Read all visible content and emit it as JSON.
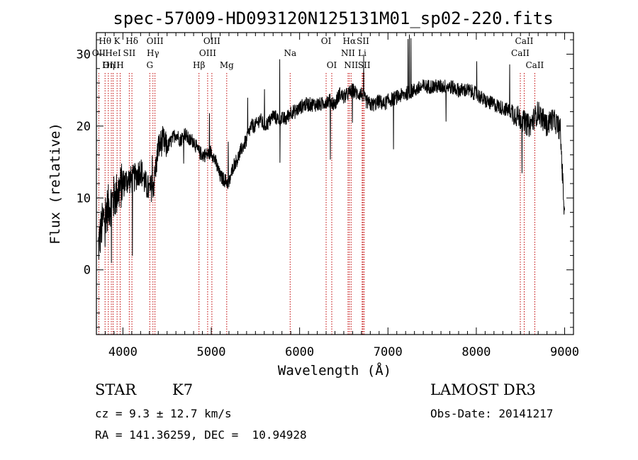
{
  "chart_data": {
    "type": "line",
    "title": "spec-57009-HD093120N125131M01_sp02-220.fits",
    "xlabel": "Wavelength (Å)",
    "ylabel": "Flux (relative)",
    "xlim": [
      3700,
      9100
    ],
    "ylim": [
      -9,
      33
    ],
    "x_ticks": [
      4000,
      5000,
      6000,
      7000,
      8000,
      9000
    ],
    "x_tick_labels": [
      "4000",
      "5000",
      "6000",
      "7000",
      "8000",
      "9000"
    ],
    "y_ticks": [
      0,
      10,
      20,
      30
    ],
    "y_tick_labels": [
      "0",
      "10",
      "20",
      "30"
    ],
    "grid": false,
    "series": [
      {
        "name": "flux",
        "x": [
          3720,
          3760,
          3800,
          3850,
          3900,
          3950,
          4000,
          4050,
          4100,
          4150,
          4200,
          4250,
          4300,
          4350,
          4400,
          4450,
          4500,
          4550,
          4600,
          4650,
          4700,
          4750,
          4800,
          4850,
          4900,
          4950,
          5000,
          5050,
          5100,
          5150,
          5200,
          5250,
          5300,
          5350,
          5400,
          5450,
          5500,
          5550,
          5600,
          5650,
          5700,
          5750,
          5800,
          5850,
          5900,
          5950,
          6000,
          6050,
          6100,
          6150,
          6200,
          6250,
          6300,
          6350,
          6400,
          6450,
          6500,
          6550,
          6600,
          6650,
          6700,
          6750,
          6800,
          6850,
          6900,
          6950,
          7000,
          7100,
          7200,
          7300,
          7400,
          7500,
          7600,
          7700,
          7800,
          7900,
          8000,
          8100,
          8200,
          8300,
          8400,
          8450,
          8500,
          8550,
          8600,
          8650,
          8700,
          8750,
          8800,
          8850,
          8900,
          8950,
          9000
        ],
        "y": [
          3,
          6,
          8,
          9,
          10,
          11,
          12,
          12.5,
          12.5,
          13,
          14,
          12,
          11,
          12,
          17,
          18,
          17,
          18,
          19,
          18,
          19,
          18,
          18,
          16.5,
          16,
          16,
          16.5,
          15,
          13,
          12.5,
          12,
          14.5,
          15.5,
          17,
          18,
          20,
          20,
          21,
          20,
          20.5,
          21.5,
          21,
          21,
          21,
          22,
          22,
          22.5,
          23,
          23,
          23,
          23,
          23,
          23.5,
          23.5,
          23,
          24.5,
          24,
          24.5,
          25,
          24.5,
          24.5,
          23.5,
          23,
          23,
          23.5,
          23,
          23.5,
          24,
          24.5,
          25,
          25.5,
          25.5,
          25.5,
          25.5,
          25,
          25,
          24.5,
          23.5,
          23,
          22.5,
          22,
          21.5,
          21,
          20.5,
          20,
          21,
          22,
          21,
          20,
          21,
          20.5,
          19.5,
          7
        ]
      }
    ],
    "annotations": [
      {
        "label": "Hθ",
        "x": 3798,
        "row": 1
      },
      {
        "label": "OII",
        "x": 3727,
        "row": 2
      },
      {
        "label": "OIII",
        "x": 3869,
        "row": 3
      },
      {
        "label": "K",
        "x": 3934,
        "row": 1
      },
      {
        "label": "HeI",
        "x": 3889,
        "row": 2
      },
      {
        "label": "Hη",
        "x": 3835,
        "row": 3
      },
      {
        "label": "H",
        "x": 3969,
        "row": 3
      },
      {
        "label": "SII",
        "x": 4072,
        "row": 2
      },
      {
        "label": "Hδ",
        "x": 4102,
        "row": 1
      },
      {
        "label": "OIII",
        "x": 4363,
        "row": 1
      },
      {
        "label": "Hγ",
        "x": 4340,
        "row": 2
      },
      {
        "label": "G",
        "x": 4304,
        "row": 3
      },
      {
        "label": "Hβ",
        "x": 4861,
        "row": 3
      },
      {
        "label": "OIII",
        "x": 5007,
        "row": 1
      },
      {
        "label": "OIII",
        "x": 4959,
        "row": 2
      },
      {
        "label": "Mg",
        "x": 5175,
        "row": 3
      },
      {
        "label": "Na",
        "x": 5893,
        "row": 2
      },
      {
        "label": "OI",
        "x": 6300,
        "row": 1
      },
      {
        "label": "OI",
        "x": 6364,
        "row": 3
      },
      {
        "label": "Hα",
        "x": 6563,
        "row": 1
      },
      {
        "label": "NII",
        "x": 6548,
        "row": 2
      },
      {
        "label": "NII",
        "x": 6583,
        "row": 3
      },
      {
        "label": "SII",
        "x": 6717,
        "row": 1
      },
      {
        "label": "Li",
        "x": 6708,
        "row": 2
      },
      {
        "label": "SII",
        "x": 6731,
        "row": 3
      },
      {
        "label": "CaII",
        "x": 8542,
        "row": 1
      },
      {
        "label": "CaII",
        "x": 8498,
        "row": 2
      },
      {
        "label": "CaII",
        "x": 8662,
        "row": 3
      }
    ]
  },
  "info": {
    "object_class": "STAR",
    "subclass": "K7",
    "survey": "LAMOST DR3",
    "redshift": "cz = 9.3 ± 12.7 km/s",
    "obs_date": "Obs-Date: 20141217",
    "coords": "RA = 141.36259, DEC =  10.94928"
  },
  "colors": {
    "line": "#000000",
    "marker_line": "#c00000",
    "background": "#ffffff"
  }
}
